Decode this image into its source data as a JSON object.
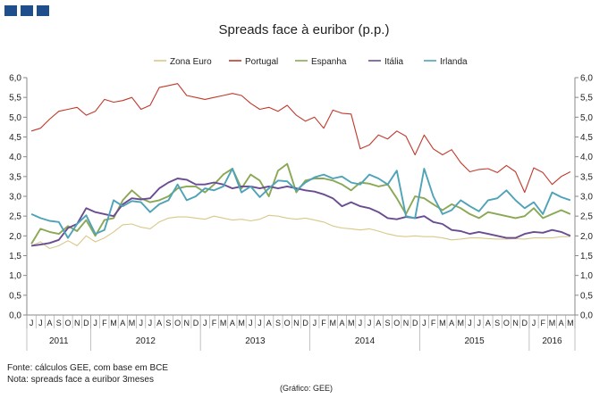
{
  "chart_data": {
    "type": "line",
    "title": "Spreads face à euribor (p.p.)",
    "xlabel": "",
    "ylabel": "",
    "ylim": [
      0,
      6
    ],
    "yticks": [
      "0,0",
      "0,5",
      "1,0",
      "1,5",
      "2,0",
      "2,5",
      "3,0",
      "3,5",
      "4,0",
      "4,5",
      "5,0",
      "5,5",
      "6,0"
    ],
    "month_labels": [
      "J",
      "J",
      "A",
      "S",
      "O",
      "N",
      "D",
      "J",
      "F",
      "M",
      "A",
      "M",
      "J",
      "J",
      "A",
      "S",
      "O",
      "N",
      "D",
      "J",
      "F",
      "M",
      "A",
      "M",
      "J",
      "J",
      "A",
      "S",
      "O",
      "N",
      "D",
      "J",
      "F",
      "M",
      "A",
      "M",
      "J",
      "J",
      "A",
      "S",
      "O",
      "N",
      "D",
      "J",
      "F",
      "M",
      "A",
      "M",
      "J",
      "J",
      "A",
      "S",
      "O",
      "N",
      "D",
      "J",
      "F",
      "M",
      "A",
      "M"
    ],
    "year_labels": [
      {
        "label": "2011",
        "start": 0,
        "end": 7
      },
      {
        "label": "2012",
        "start": 7,
        "end": 19
      },
      {
        "label": "2013",
        "start": 19,
        "end": 31
      },
      {
        "label": "2014",
        "start": 31,
        "end": 43
      },
      {
        "label": "2015",
        "start": 43,
        "end": 55
      },
      {
        "label": "2016",
        "start": 55,
        "end": 60
      }
    ],
    "legend_position": "top",
    "grid": false,
    "series": [
      {
        "name": "Zona Euro",
        "color": "#d8c888",
        "values": [
          1.75,
          1.85,
          1.68,
          1.75,
          1.88,
          1.75,
          2.0,
          1.85,
          1.95,
          2.1,
          2.28,
          2.3,
          2.22,
          2.18,
          2.35,
          2.45,
          2.48,
          2.48,
          2.45,
          2.42,
          2.5,
          2.45,
          2.4,
          2.42,
          2.38,
          2.42,
          2.52,
          2.5,
          2.45,
          2.42,
          2.45,
          2.4,
          2.35,
          2.25,
          2.2,
          2.18,
          2.15,
          2.18,
          2.12,
          2.05,
          2.0,
          1.98,
          2.0,
          1.98,
          1.98,
          1.95,
          1.9,
          1.92,
          1.95,
          1.95,
          1.93,
          1.92,
          1.92,
          1.93,
          1.92,
          1.95,
          1.95,
          1.95,
          1.98,
          1.98
        ]
      },
      {
        "name": "Portugal",
        "color": "#c0392b",
        "values": [
          4.65,
          4.72,
          4.95,
          5.15,
          5.2,
          5.25,
          5.05,
          5.15,
          5.45,
          5.38,
          5.42,
          5.5,
          5.2,
          5.3,
          5.75,
          5.8,
          5.85,
          5.55,
          5.5,
          5.45,
          5.5,
          5.55,
          5.6,
          5.55,
          5.35,
          5.2,
          5.25,
          5.15,
          5.3,
          5.05,
          4.9,
          5.0,
          4.72,
          5.18,
          5.1,
          5.08,
          4.2,
          4.3,
          4.55,
          4.45,
          4.65,
          4.52,
          4.05,
          4.55,
          4.2,
          4.05,
          4.18,
          3.85,
          3.62,
          3.68,
          3.7,
          3.6,
          3.78,
          3.62,
          3.1,
          3.72,
          3.6,
          3.3,
          3.5,
          3.62
        ]
      },
      {
        "name": "Espanha",
        "color": "#8aa856",
        "values": [
          1.8,
          2.18,
          2.1,
          2.05,
          2.25,
          2.12,
          2.4,
          2.0,
          2.4,
          2.45,
          2.9,
          3.15,
          2.95,
          2.85,
          2.9,
          3.0,
          3.2,
          3.25,
          3.25,
          3.1,
          3.3,
          3.55,
          3.7,
          3.2,
          3.55,
          3.4,
          3.0,
          3.65,
          3.82,
          3.1,
          3.4,
          3.45,
          3.45,
          3.4,
          3.3,
          3.15,
          3.35,
          3.32,
          3.25,
          3.3,
          2.95,
          2.55,
          3.0,
          2.95,
          2.8,
          2.65,
          2.8,
          2.7,
          2.55,
          2.45,
          2.6,
          2.55,
          2.5,
          2.45,
          2.5,
          2.7,
          2.45,
          2.55,
          2.65,
          2.55
        ]
      },
      {
        "name": "Itália",
        "color": "#6a4c93",
        "values": [
          1.75,
          1.78,
          1.82,
          1.9,
          2.2,
          2.3,
          2.7,
          2.6,
          2.55,
          2.5,
          2.8,
          2.95,
          2.92,
          2.95,
          3.2,
          3.35,
          3.45,
          3.42,
          3.3,
          3.3,
          3.35,
          3.3,
          3.2,
          3.25,
          3.25,
          3.2,
          3.25,
          3.2,
          3.25,
          3.2,
          3.15,
          3.12,
          3.05,
          2.95,
          2.75,
          2.85,
          2.75,
          2.7,
          2.6,
          2.45,
          2.42,
          2.48,
          2.45,
          2.5,
          2.35,
          2.3,
          2.15,
          2.12,
          2.05,
          2.1,
          2.05,
          2.0,
          1.95,
          1.95,
          2.05,
          2.1,
          2.08,
          2.15,
          2.1,
          2.0
        ]
      },
      {
        "name": "Irlanda",
        "color": "#4fa3b8",
        "values": [
          2.55,
          2.45,
          2.38,
          2.35,
          1.95,
          2.3,
          2.52,
          2.05,
          2.15,
          2.9,
          2.75,
          2.88,
          2.85,
          2.6,
          2.8,
          2.9,
          3.3,
          2.9,
          3.0,
          3.2,
          3.15,
          3.25,
          3.7,
          3.1,
          3.25,
          2.98,
          3.2,
          3.4,
          3.38,
          3.15,
          3.35,
          3.48,
          3.55,
          3.45,
          3.5,
          3.35,
          3.3,
          3.55,
          3.45,
          3.3,
          3.65,
          2.5,
          2.45,
          3.7,
          3.0,
          2.55,
          2.65,
          2.9,
          2.75,
          2.62,
          2.9,
          2.95,
          3.15,
          2.9,
          2.7,
          2.85,
          2.55,
          3.1,
          2.98,
          2.9
        ]
      }
    ]
  },
  "footer": {
    "source": "Fonte: cálculos GEE, com base em BCE",
    "note": "Nota: spreads face a euribor 3meses",
    "credit": "(Gráfico: GEE)"
  },
  "colors": {
    "brand": "#1f4e8c",
    "axis": "#888888"
  }
}
